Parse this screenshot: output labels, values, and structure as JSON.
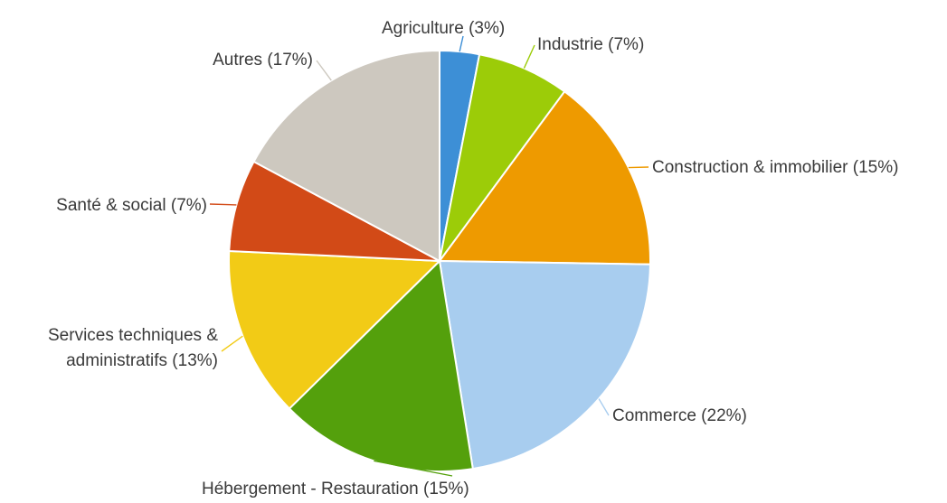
{
  "chart_data": {
    "type": "pie",
    "title": "",
    "start_angle_deg": 0,
    "direction": "clockwise",
    "slices": [
      {
        "name": "Agriculture",
        "value": 3,
        "label": "Agriculture (3%)",
        "color": "#3d8fd6"
      },
      {
        "name": "Industrie",
        "value": 7,
        "label": "Industrie (7%)",
        "color": "#9ccc08"
      },
      {
        "name": "Construction & immobilier",
        "value": 15,
        "label": "Construction & immobilier (15%)",
        "color": "#ee9a00"
      },
      {
        "name": "Commerce",
        "value": 22,
        "label": "Commerce (22%)",
        "color": "#a8cdef"
      },
      {
        "name": "Hébergement - Restauration",
        "value": 15,
        "label": "Hébergement - Restauration (15%)",
        "color": "#54a00c"
      },
      {
        "name": "Services techniques & administratifs",
        "value": 13,
        "label_lines": [
          "Services techniques &",
          "administratifs (13%)"
        ],
        "color": "#f2cb16"
      },
      {
        "name": "Santé & social",
        "value": 7,
        "label": "Santé & social (7%)",
        "color": "#d24a17"
      },
      {
        "name": "Autres",
        "value": 17,
        "label": "Autres (17%)",
        "color": "#cdc8bf"
      }
    ]
  }
}
